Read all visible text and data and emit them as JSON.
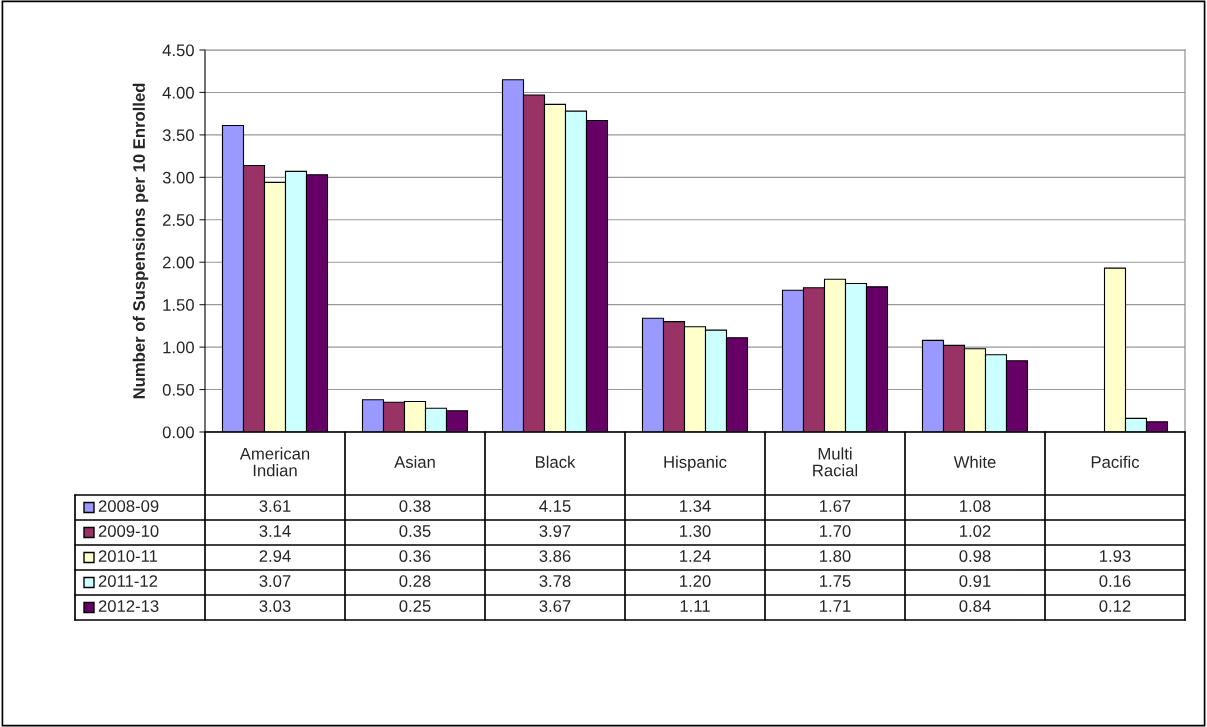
{
  "chart_data": {
    "type": "bar",
    "ylabel": "Number of Suspensions per 10 Enrolled",
    "categories": [
      "American Indian",
      "Asian",
      "Black",
      "Hispanic",
      "Multi Racial",
      "White",
      "Pacific"
    ],
    "series": [
      {
        "name": "2008-09",
        "color": "#9999ff",
        "values": [
          3.61,
          0.38,
          4.15,
          1.34,
          1.67,
          1.08,
          null
        ],
        "value_labels": [
          "3.61",
          "0.38",
          "4.15",
          "1.34",
          "1.67",
          "1.08",
          null
        ]
      },
      {
        "name": "2009-10",
        "color": "#993366",
        "values": [
          3.14,
          0.35,
          3.97,
          1.3,
          1.7,
          1.02,
          null
        ],
        "value_labels": [
          "3.14",
          "0.35",
          "3.97",
          "1.30",
          "1.70",
          "1.02",
          null
        ]
      },
      {
        "name": "2010-11",
        "color": "#ffffcc",
        "values": [
          2.94,
          0.36,
          3.86,
          1.24,
          1.8,
          0.98,
          1.93
        ],
        "value_labels": [
          "2.94",
          "0.36",
          "3.86",
          "1.24",
          "1.80",
          "0.98",
          "1.93"
        ]
      },
      {
        "name": "2011-12",
        "color": "#ccffff",
        "values": [
          3.07,
          0.28,
          3.78,
          1.2,
          1.75,
          0.91,
          0.16
        ],
        "value_labels": [
          "3.07",
          "0.28",
          "3.78",
          "1.20",
          "1.75",
          "0.91",
          "0.16"
        ]
      },
      {
        "name": "2012-13",
        "color": "#660066",
        "values": [
          3.03,
          0.25,
          3.67,
          1.11,
          1.71,
          0.84,
          0.12
        ],
        "value_labels": [
          "3.03",
          "0.25",
          "3.67",
          "1.11",
          "1.71",
          "0.84",
          "0.12"
        ]
      }
    ],
    "ylim": [
      0,
      4.5
    ],
    "yticks": [
      {
        "value": 0,
        "label": "0.00"
      },
      {
        "value": 0.5,
        "label": "0.50"
      },
      {
        "value": 1,
        "label": "1.00"
      },
      {
        "value": 1.5,
        "label": "1.50"
      },
      {
        "value": 2,
        "label": "2.00"
      },
      {
        "value": 2.5,
        "label": "2.50"
      },
      {
        "value": 3,
        "label": "3.00"
      },
      {
        "value": 3.5,
        "label": "3.50"
      },
      {
        "value": 4,
        "label": "4.00"
      },
      {
        "value": 4.5,
        "label": "4.50"
      }
    ],
    "grid": "y",
    "legend": "bottom left"
  }
}
